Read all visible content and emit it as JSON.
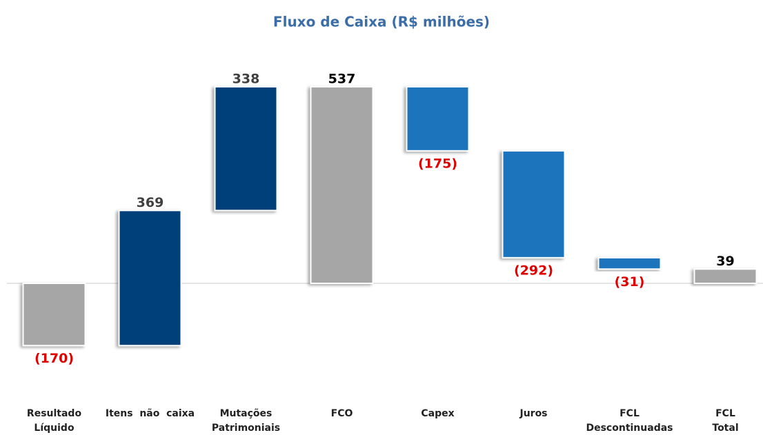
{
  "chart_data": {
    "type": "waterfall",
    "title": "Fluxo de Caixa (R$ milhões)",
    "categories": [
      "Resultado\nLíquido",
      "Itens  não  caixa",
      "Mutações\nPatrimoniais",
      "FCO",
      "Capex",
      "Juros",
      "FCL\nDescontinuadas",
      "FCL\nTotal"
    ],
    "values": [
      -170,
      369,
      338,
      537,
      -175,
      -292,
      -31,
      39
    ],
    "value_labels": [
      "(170)",
      "369",
      "338",
      "537",
      "(175)",
      "(292)",
      "(31)",
      "39"
    ],
    "is_total": [
      false,
      false,
      false,
      true,
      false,
      false,
      false,
      true
    ],
    "colors": [
      "#a6a6a6",
      "#003f7a",
      "#003f7a",
      "#a6a6a6",
      "#1b75bc",
      "#1b75bc",
      "#1b75bc",
      "#a6a6a6"
    ],
    "ylim": [
      -230,
      580
    ]
  }
}
